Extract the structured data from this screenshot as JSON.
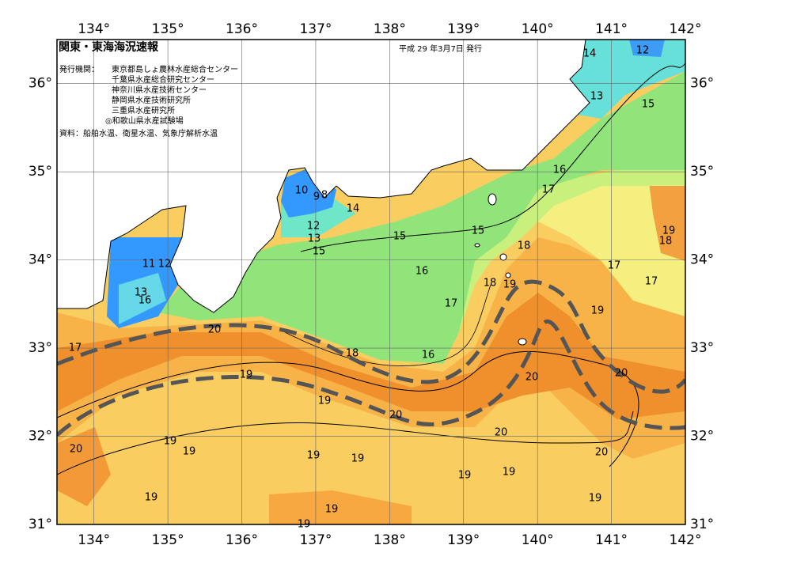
{
  "header": {
    "title": "関東・東海海況速報",
    "date": "平成 29 年3月7日 発行"
  },
  "issuers": {
    "label": "発行機関：",
    "names": [
      "東京都島しょ農林水産総合センター",
      "千葉県水産総合研究センター",
      "神奈川県水産技術センター",
      "静岡県水産技術研究所",
      "三重県水産研究所",
      "◎和歌山県水産試験場"
    ]
  },
  "source": "資料：船舶水温、衛星水温、気象庁解析水温",
  "map": {
    "xlim": [
      133.5,
      142
    ],
    "ylim": [
      31,
      36.5
    ],
    "xticks": [
      {
        "value": 134,
        "label": "134°"
      },
      {
        "value": 135,
        "label": "135°"
      },
      {
        "value": 136,
        "label": "136°"
      },
      {
        "value": 137,
        "label": "137°"
      },
      {
        "value": 138,
        "label": "138°"
      },
      {
        "value": 139,
        "label": "139°"
      },
      {
        "value": 140,
        "label": "140°"
      },
      {
        "value": 141,
        "label": "141°"
      },
      {
        "value": 142,
        "label": "142°"
      }
    ],
    "yticks": [
      {
        "value": 31,
        "label": "31°"
      },
      {
        "value": 32,
        "label": "32°"
      },
      {
        "value": 33,
        "label": "33°"
      },
      {
        "value": 34,
        "label": "34°"
      },
      {
        "value": 35,
        "label": "35°"
      },
      {
        "value": 36,
        "label": "36°"
      }
    ],
    "contour_labels": [
      14,
      12,
      13,
      15,
      16,
      17,
      10,
      9,
      8,
      14,
      12,
      13,
      15,
      15,
      15,
      18,
      19,
      18,
      11,
      12,
      16,
      17,
      18,
      19,
      17,
      13,
      16,
      17,
      19,
      20,
      18,
      16,
      17,
      19,
      20,
      20,
      19,
      20,
      20,
      19,
      20,
      19,
      19,
      19,
      20,
      19,
      19,
      19,
      19,
      19,
      19
    ]
  }
}
